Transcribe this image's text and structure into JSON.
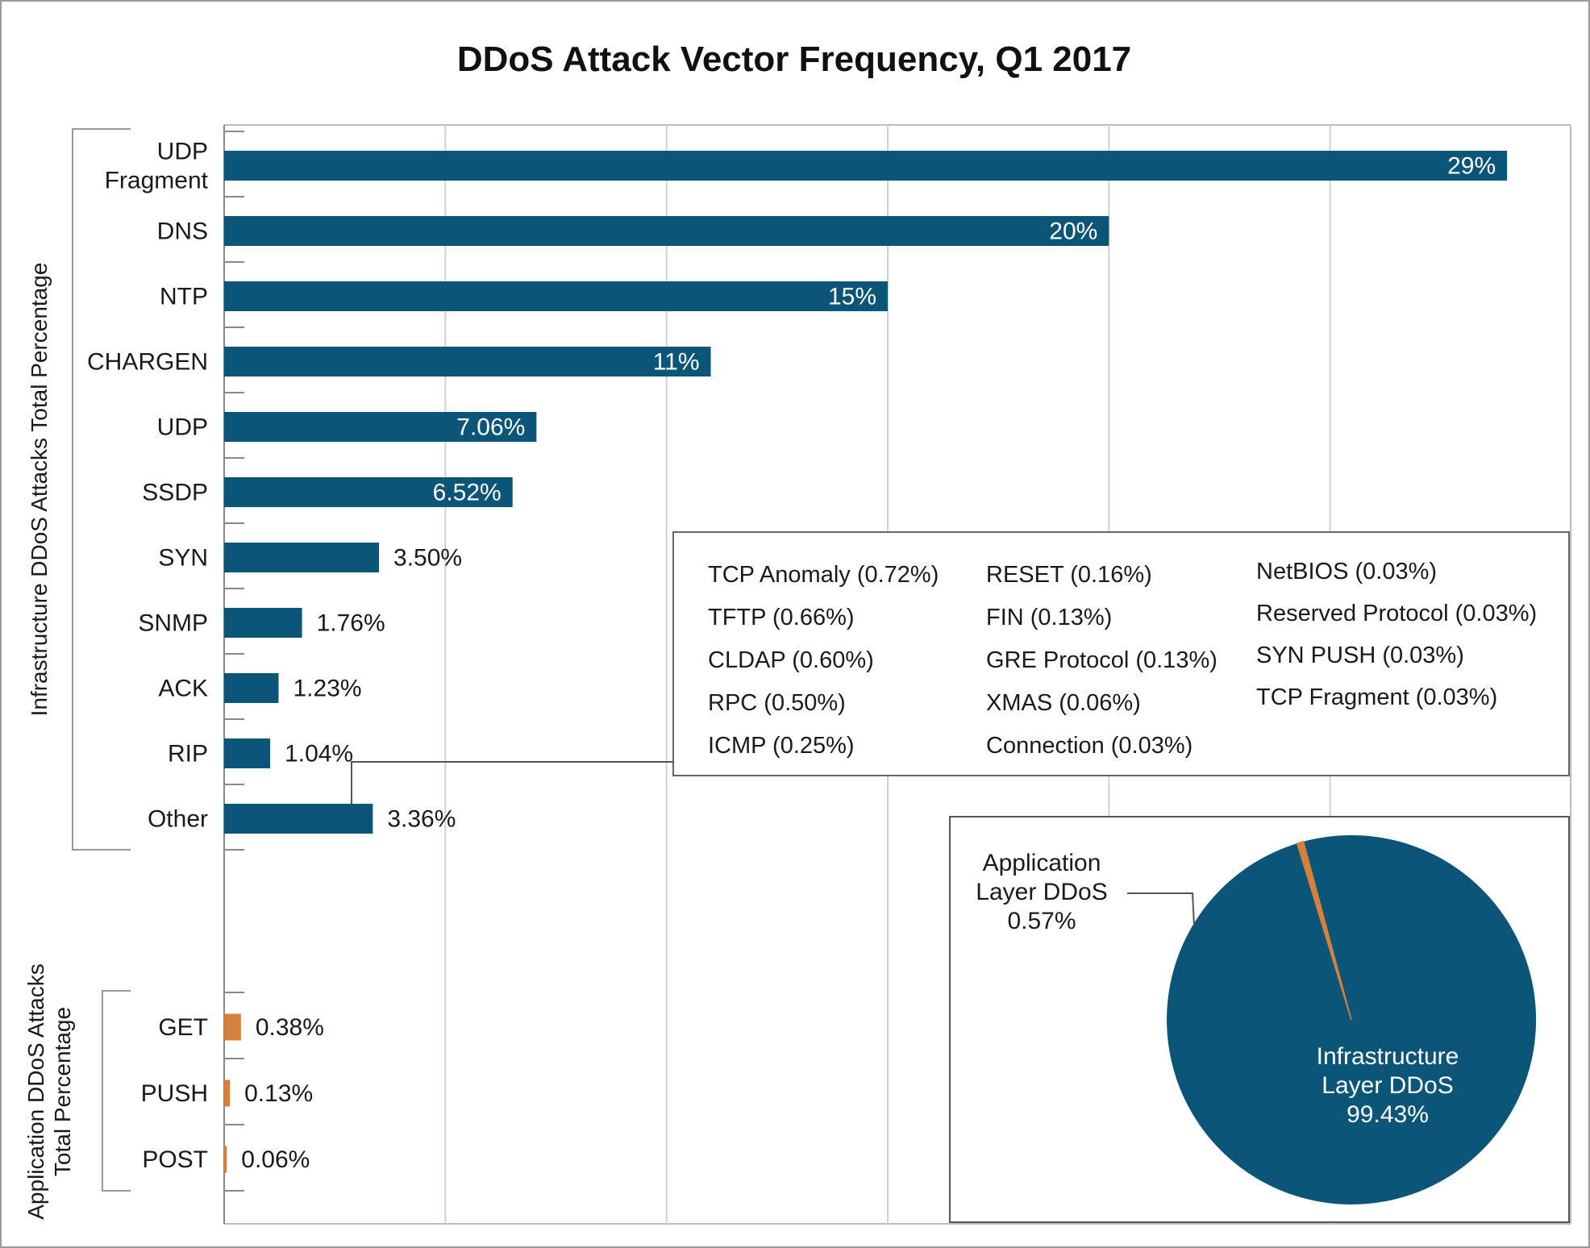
{
  "chart_data": [
    {
      "type": "bar",
      "orientation": "horizontal",
      "title": "DDoS Attack Vector Frequency, Q1 2017",
      "groups": [
        {
          "label": "Infrastructure DDoS Attacks Total Percentage",
          "color": "#0b5579",
          "categories": [
            [
              "UDP",
              "Fragment"
            ],
            [
              "DNS"
            ],
            [
              "NTP"
            ],
            [
              "CHARGEN"
            ],
            [
              "UDP"
            ],
            [
              "SSDP"
            ],
            [
              "SYN"
            ],
            [
              "SNMP"
            ],
            [
              "ACK"
            ],
            [
              "RIP"
            ],
            [
              "Other"
            ]
          ],
          "values": [
            29,
            20,
            15,
            11,
            7.06,
            6.52,
            3.5,
            1.76,
            1.23,
            1.04,
            3.36
          ],
          "value_labels": [
            "29%",
            "20%",
            "15%",
            "11%",
            "7.06%",
            "6.52%",
            "3.50%",
            "1.76%",
            "1.23%",
            "1.04%",
            "3.36%"
          ]
        },
        {
          "label_lines": [
            "Application DDoS Attacks",
            "Total Percentage"
          ],
          "color": "#d5803d",
          "categories": [
            [
              "GET"
            ],
            [
              "PUSH"
            ],
            [
              "POST"
            ]
          ],
          "values": [
            0.38,
            0.13,
            0.06
          ],
          "value_labels": [
            "0.38%",
            "0.13%",
            "0.06%"
          ]
        }
      ],
      "xlim": [
        0,
        30
      ],
      "grid": true,
      "other_breakdown": [
        [
          "TCP Anomaly (0.72%)",
          "TFTP (0.66%)",
          "CLDAP (0.60%)",
          "RPC (0.50%)",
          "ICMP (0.25%)"
        ],
        [
          "RESET (0.16%)",
          "FIN (0.13%)",
          "GRE Protocol (0.13%)",
          "XMAS (0.06%)",
          "Connection (0.03%)"
        ],
        [
          "NetBIOS (0.03%)",
          "Reserved Protocol (0.03%)",
          "SYN PUSH (0.03%)",
          "TCP Fragment (0.03%)"
        ]
      ]
    },
    {
      "type": "pie",
      "slices": [
        {
          "name_lines": [
            "Infrastructure",
            "Layer DDoS"
          ],
          "value": 99.43,
          "value_label": "99.43%",
          "color": "#0b5579"
        },
        {
          "name_lines": [
            "Application",
            "Layer DDoS"
          ],
          "value": 0.57,
          "value_label": "0.57%",
          "color": "#d5803d"
        }
      ]
    }
  ]
}
